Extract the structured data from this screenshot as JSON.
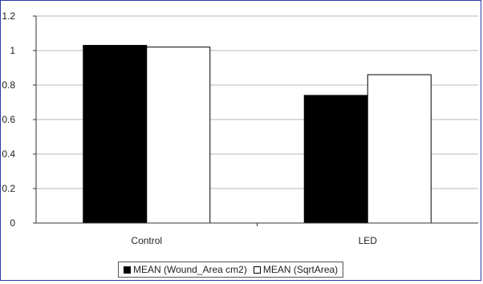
{
  "chart_data": {
    "type": "bar",
    "categories": [
      "Control",
      "LED"
    ],
    "series": [
      {
        "name": "MEAN (Wound_Area cm2)",
        "values": [
          1.03,
          0.74
        ],
        "color": "#000000"
      },
      {
        "name": "MEAN (SqrtArea)",
        "values": [
          1.02,
          0.86
        ],
        "color": "#ffffff"
      }
    ],
    "ylim": [
      0,
      1.2
    ],
    "yticks": [
      "0",
      "0.2",
      "0.4",
      "0.6",
      "0.8",
      "1",
      "1.2"
    ],
    "ytick_values": [
      0,
      0.2,
      0.4,
      0.6,
      0.8,
      1.0,
      1.2
    ],
    "grid": true,
    "legend": "bottom",
    "title": "",
    "xlabel": "",
    "ylabel": ""
  }
}
